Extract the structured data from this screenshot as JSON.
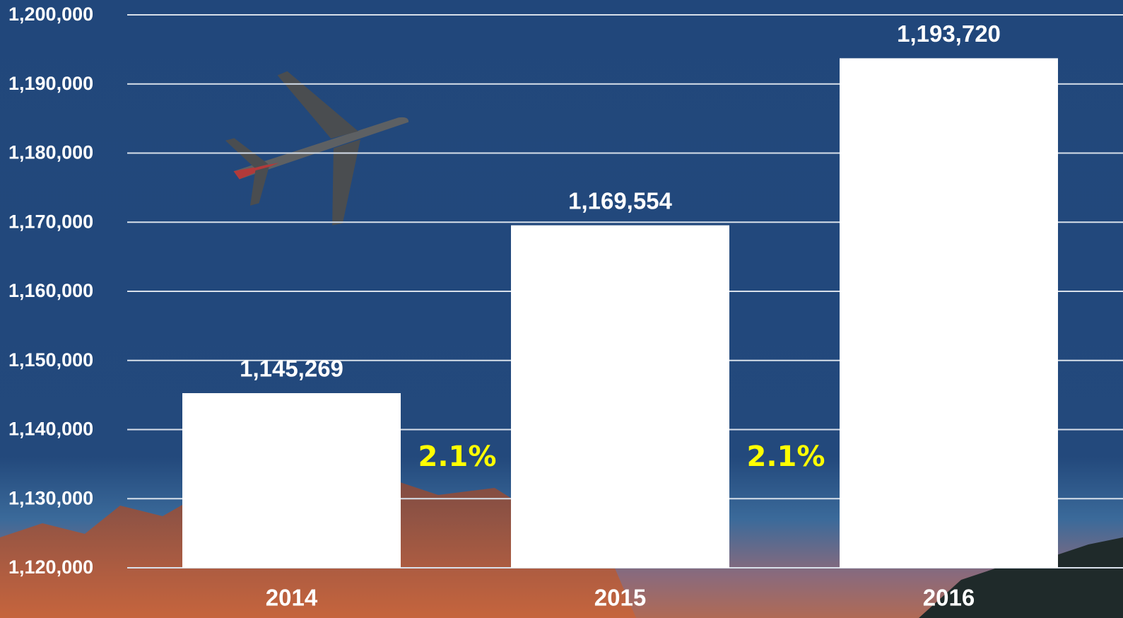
{
  "chart_data": {
    "type": "bar",
    "categories": [
      "2014",
      "2015",
      "2016"
    ],
    "values": [
      1145269,
      1169554,
      1193720
    ],
    "value_labels": [
      "1,145,269",
      "1,169,554",
      "1,193,720"
    ],
    "color": "#ffffff",
    "ylim": [
      1120000,
      1200000
    ],
    "yticks": [
      {
        "value": 1120000,
        "label": "1,120,000"
      },
      {
        "value": 1130000,
        "label": "1,130,000"
      },
      {
        "value": 1140000,
        "label": "1,140,000"
      },
      {
        "value": 1150000,
        "label": "1,150,000"
      },
      {
        "value": 1160000,
        "label": "1,160,000"
      },
      {
        "value": 1170000,
        "label": "1,170,000"
      },
      {
        "value": 1180000,
        "label": "1,180,000"
      },
      {
        "value": 1190000,
        "label": "1,190,000"
      },
      {
        "value": 1200000,
        "label": "1,200,000"
      }
    ],
    "grid": true,
    "annotations": [
      "2.1%",
      "2.1%"
    ]
  }
}
